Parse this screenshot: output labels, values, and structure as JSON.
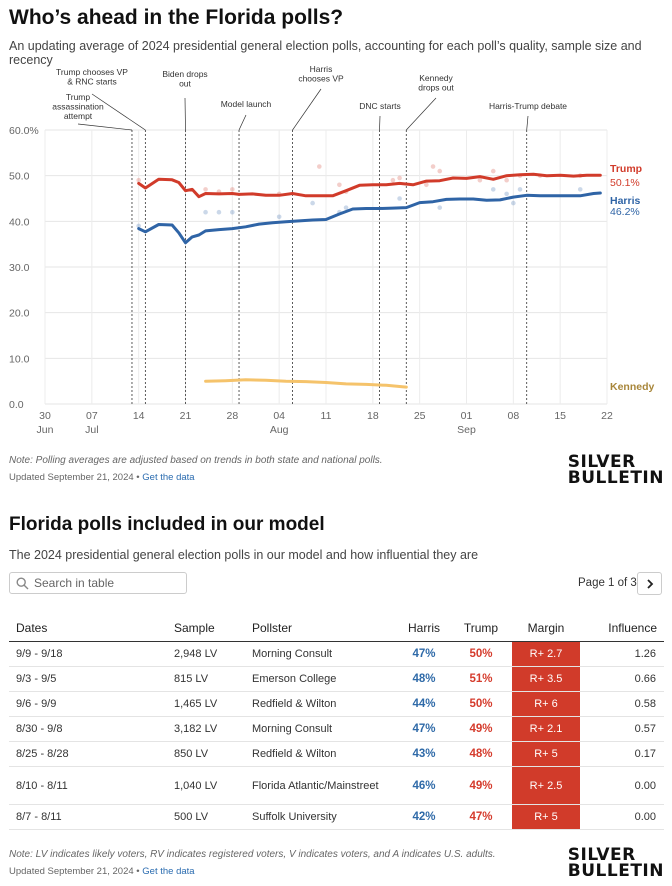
{
  "header": {
    "title": "Who’s ahead in the Florida polls?",
    "subtitle": "An updating average of 2024 presidential general election polls, accounting for each poll’s quality, sample size and recency"
  },
  "chart_data": {
    "type": "line",
    "ylim": [
      0,
      60
    ],
    "yticks": [
      "0.0",
      "10.0",
      "20.0",
      "30.0",
      "40.0",
      "50.0",
      "60.0%"
    ],
    "xticks": [
      {
        "date": "2024-06-30",
        "label": "30",
        "sub": "Jun"
      },
      {
        "date": "2024-07-07",
        "label": "07",
        "sub": "Jul"
      },
      {
        "date": "2024-07-14",
        "label": "14",
        "sub": ""
      },
      {
        "date": "2024-07-21",
        "label": "21",
        "sub": ""
      },
      {
        "date": "2024-07-28",
        "label": "28",
        "sub": ""
      },
      {
        "date": "2024-08-04",
        "label": "04",
        "sub": "Aug"
      },
      {
        "date": "2024-08-11",
        "label": "11",
        "sub": ""
      },
      {
        "date": "2024-08-18",
        "label": "18",
        "sub": ""
      },
      {
        "date": "2024-08-25",
        "label": "25",
        "sub": ""
      },
      {
        "date": "2024-09-01",
        "label": "01",
        "sub": "Sep"
      },
      {
        "date": "2024-09-08",
        "label": "08",
        "sub": ""
      },
      {
        "date": "2024-09-15",
        "label": "15",
        "sub": ""
      },
      {
        "date": "2024-09-22",
        "label": "22",
        "sub": ""
      }
    ],
    "events": [
      {
        "date": "2024-07-13",
        "label": "Trump assassination attempt"
      },
      {
        "date": "2024-07-15",
        "label": "Trump chooses VP & RNC starts"
      },
      {
        "date": "2024-07-21",
        "label": "Biden drops out"
      },
      {
        "date": "2024-07-29",
        "label": "Model launch"
      },
      {
        "date": "2024-08-06",
        "label": "Harris chooses VP"
      },
      {
        "date": "2024-08-19",
        "label": "DNC starts"
      },
      {
        "date": "2024-08-23",
        "label": "Kennedy drops out"
      },
      {
        "date": "2024-09-10",
        "label": "Harris-Trump debate"
      }
    ],
    "series": [
      {
        "name": "Trump",
        "color": "#d13b2a",
        "final_label": "50.1%",
        "x": [
          "2024-07-14",
          "2024-07-15",
          "2024-07-17",
          "2024-07-19",
          "2024-07-20",
          "2024-07-21",
          "2024-07-22",
          "2024-07-23",
          "2024-07-24",
          "2024-07-26",
          "2024-07-28",
          "2024-07-29",
          "2024-07-31",
          "2024-08-02",
          "2024-08-04",
          "2024-08-06",
          "2024-08-08",
          "2024-08-10",
          "2024-08-12",
          "2024-08-14",
          "2024-08-16",
          "2024-08-18",
          "2024-08-20",
          "2024-08-22",
          "2024-08-24",
          "2024-08-26",
          "2024-08-28",
          "2024-08-30",
          "2024-09-01",
          "2024-09-03",
          "2024-09-05",
          "2024-09-07",
          "2024-09-09",
          "2024-09-11",
          "2024-09-13",
          "2024-09-15",
          "2024-09-17",
          "2024-09-19",
          "2024-09-21"
        ],
        "values": [
          48.3,
          47.3,
          49.2,
          49.1,
          48.5,
          46.7,
          47.0,
          45.4,
          46.1,
          46.0,
          46.1,
          45.9,
          46.0,
          45.7,
          45.7,
          46.1,
          45.6,
          45.6,
          45.6,
          46.7,
          47.9,
          48.0,
          48.0,
          48.3,
          48.0,
          48.8,
          48.9,
          49.5,
          49.4,
          49.8,
          49.2,
          50.0,
          50.2,
          50.3,
          50.0,
          50.1,
          49.9,
          50.1,
          50.1
        ]
      },
      {
        "name": "Harris",
        "color": "#2f64a6",
        "final_label": "46.2%",
        "x": [
          "2024-07-14",
          "2024-07-15",
          "2024-07-17",
          "2024-07-19",
          "2024-07-20",
          "2024-07-21",
          "2024-07-22",
          "2024-07-23",
          "2024-07-24",
          "2024-07-26",
          "2024-07-28",
          "2024-07-30",
          "2024-08-01",
          "2024-08-03",
          "2024-08-05",
          "2024-08-07",
          "2024-08-09",
          "2024-08-11",
          "2024-08-13",
          "2024-08-15",
          "2024-08-17",
          "2024-08-19",
          "2024-08-21",
          "2024-08-23",
          "2024-08-25",
          "2024-08-27",
          "2024-08-29",
          "2024-08-31",
          "2024-09-02",
          "2024-09-04",
          "2024-09-06",
          "2024-09-08",
          "2024-09-10",
          "2024-09-12",
          "2024-09-14",
          "2024-09-16",
          "2024-09-18",
          "2024-09-20",
          "2024-09-21"
        ],
        "values": [
          38.4,
          37.7,
          39.3,
          39.2,
          37.5,
          35.3,
          36.6,
          37.0,
          37.9,
          38.2,
          38.4,
          38.8,
          39.4,
          39.7,
          39.9,
          40.1,
          40.3,
          40.4,
          41.6,
          42.7,
          42.8,
          42.8,
          42.9,
          43.0,
          44.1,
          44.3,
          44.8,
          44.9,
          44.9,
          44.6,
          44.7,
          45.3,
          45.7,
          45.6,
          45.6,
          45.6,
          45.6,
          46.1,
          46.2
        ]
      },
      {
        "name": "Kennedy",
        "color": "#f5c36b",
        "final_label": "",
        "x": [
          "2024-07-24",
          "2024-07-27",
          "2024-07-30",
          "2024-08-02",
          "2024-08-05",
          "2024-08-08",
          "2024-08-11",
          "2024-08-14",
          "2024-08-17",
          "2024-08-20",
          "2024-08-23"
        ],
        "values": [
          5.0,
          5.1,
          5.3,
          5.2,
          5.0,
          4.9,
          4.7,
          4.4,
          4.3,
          4.1,
          3.7
        ]
      }
    ],
    "poll_dots": [
      {
        "series": "Trump",
        "points": [
          [
            "2024-07-14",
            49
          ],
          [
            "2024-07-24",
            47
          ],
          [
            "2024-07-26",
            46.5
          ],
          [
            "2024-07-28",
            47
          ],
          [
            "2024-08-04",
            46
          ],
          [
            "2024-08-10",
            52
          ],
          [
            "2024-08-13",
            48
          ],
          [
            "2024-08-14",
            46.5
          ],
          [
            "2024-08-21",
            49
          ],
          [
            "2024-08-22",
            49.5
          ],
          [
            "2024-08-26",
            48
          ],
          [
            "2024-08-27",
            52
          ],
          [
            "2024-08-28",
            51
          ],
          [
            "2024-09-03",
            49
          ],
          [
            "2024-09-05",
            51
          ],
          [
            "2024-09-07",
            49
          ],
          [
            "2024-09-09",
            50
          ],
          [
            "2024-09-12",
            50
          ],
          [
            "2024-09-18",
            50
          ]
        ]
      },
      {
        "series": "Harris",
        "points": [
          [
            "2024-07-14",
            39
          ],
          [
            "2024-07-24",
            42
          ],
          [
            "2024-07-26",
            42
          ],
          [
            "2024-07-28",
            42
          ],
          [
            "2024-08-04",
            41
          ],
          [
            "2024-08-09",
            44
          ],
          [
            "2024-08-13",
            42
          ],
          [
            "2024-08-14",
            43
          ],
          [
            "2024-08-22",
            45
          ],
          [
            "2024-08-28",
            43
          ],
          [
            "2024-09-05",
            47
          ],
          [
            "2024-09-07",
            46
          ],
          [
            "2024-09-08",
            44
          ],
          [
            "2024-09-09",
            47
          ],
          [
            "2024-09-18",
            47
          ]
        ]
      }
    ]
  },
  "chart_footer": {
    "note": "Note: Polling averages are adjusted based on trends in both state and national polls.",
    "updated": "Updated September 21, 2024 •",
    "get_data": "Get the data"
  },
  "logo": {
    "line1": "SILVER",
    "line2": "BULLETIN"
  },
  "table_section": {
    "title": "Florida polls included in our model",
    "subtitle": "The 2024 presidential general election polls in our model and how influential they are",
    "search_placeholder": "Search in table",
    "page_info": "Page 1 of 3",
    "headers": {
      "dates": "Dates",
      "sample": "Sample",
      "pollster": "Pollster",
      "harris": "Harris",
      "trump": "Trump",
      "margin": "Margin",
      "influence": "Influence"
    },
    "rows": [
      {
        "dates": "9/9 - 9/18",
        "sample": "2,948 LV",
        "pollster": "Morning Consult",
        "harris": "47%",
        "trump": "50%",
        "margin": "R+ 2.7",
        "influence": "1.26"
      },
      {
        "dates": "9/3 - 9/5",
        "sample": "815 LV",
        "pollster": "Emerson College",
        "harris": "48%",
        "trump": "51%",
        "margin": "R+ 3.5",
        "influence": "0.66"
      },
      {
        "dates": "9/6 - 9/9",
        "sample": "1,465 LV",
        "pollster": "Redfield & Wilton",
        "harris": "44%",
        "trump": "50%",
        "margin": "R+ 6",
        "influence": "0.58"
      },
      {
        "dates": "8/30 - 9/8",
        "sample": "3,182 LV",
        "pollster": "Morning Consult",
        "harris": "47%",
        "trump": "49%",
        "margin": "R+ 2.1",
        "influence": "0.57"
      },
      {
        "dates": "8/25 - 8/28",
        "sample": "850 LV",
        "pollster": "Redfield & Wilton",
        "harris": "43%",
        "trump": "48%",
        "margin": "R+ 5",
        "influence": "0.17"
      },
      {
        "dates": "8/10 - 8/11",
        "sample": "1,040 LV",
        "pollster": "Florida Atlantic/Mainstreet",
        "harris": "46%",
        "trump": "49%",
        "margin": "R+ 2.5",
        "influence": "0.00"
      },
      {
        "dates": "8/7 - 8/11",
        "sample": "500 LV",
        "pollster": "Suffolk University",
        "harris": "42%",
        "trump": "47%",
        "margin": "R+ 5",
        "influence": "0.00"
      }
    ],
    "note": "Note: LV indicates likely voters, RV indicates registered voters, V indicates voters, and A indicates U.S. adults.",
    "updated": "Updated September 21, 2024 •",
    "get_data": "Get the data"
  }
}
